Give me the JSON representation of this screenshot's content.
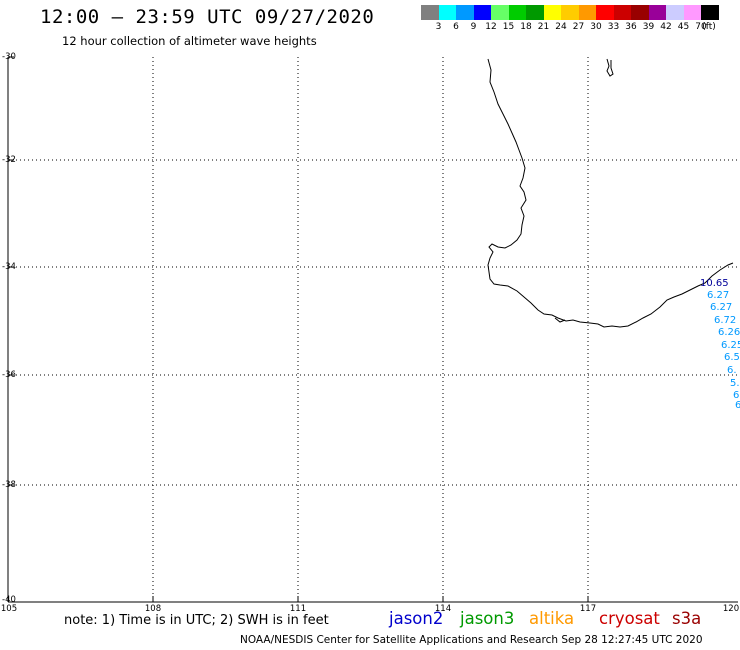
{
  "header": {
    "title": "12:00 – 23:59 UTC 09/27/2020",
    "subtitle": "12 hour collection of altimeter wave heights"
  },
  "legend": {
    "colors": [
      "#808080",
      "#00ffff",
      "#0099ff",
      "#0000ff",
      "#66ff66",
      "#00cc00",
      "#009900",
      "#ffff00",
      "#ffcc00",
      "#ff9900",
      "#ff0000",
      "#cc0000",
      "#990000",
      "#990099",
      "#ccccff",
      "#ff99ff",
      "#000000"
    ],
    "labels": [
      "3",
      "6",
      "9",
      "12",
      "15",
      "18",
      "21",
      "24",
      "27",
      "30",
      "33",
      "36",
      "39",
      "42",
      "45",
      "70",
      "(ft)"
    ]
  },
  "axes": {
    "y_labels": [
      "-30",
      "-32",
      "-34",
      "-36",
      "-38",
      "-40"
    ],
    "x_labels": [
      "105",
      "108",
      "111",
      "114",
      "117",
      "120"
    ]
  },
  "observations": [
    {
      "text": "10.65",
      "color": "#000099"
    },
    {
      "text": "6.27",
      "color": "#0099ff"
    },
    {
      "text": "6.27",
      "color": "#0099ff"
    },
    {
      "text": "6.72",
      "color": "#0099ff"
    },
    {
      "text": "6.26",
      "color": "#0099ff"
    },
    {
      "text": "6.25",
      "color": "#0099ff"
    },
    {
      "text": "6.5",
      "color": "#0099ff"
    },
    {
      "text": "6.",
      "color": "#0099ff"
    },
    {
      "text": "5.",
      "color": "#0099ff"
    },
    {
      "text": "6",
      "color": "#0099ff"
    },
    {
      "text": "6",
      "color": "#0099ff"
    }
  ],
  "footer": {
    "note": "note: 1) Time is in UTC; 2) SWH is in feet",
    "credit": "NOAA/NESDIS Center for Satellite Applications and Research   Sep 28 12:27:45 UTC 2020"
  },
  "satellites": [
    {
      "name": "jason2",
      "color": "#0000cc"
    },
    {
      "name": "jason3",
      "color": "#009900"
    },
    {
      "name": "altika",
      "color": "#ff9900"
    },
    {
      "name": "cryosat",
      "color": "#cc0000"
    },
    {
      "name": "s3a",
      "color": "#990000"
    }
  ]
}
